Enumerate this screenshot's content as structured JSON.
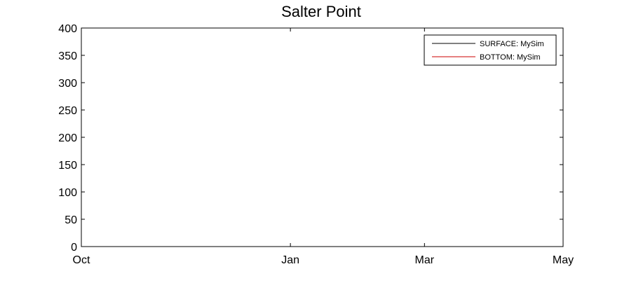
{
  "chart_data": {
    "type": "line",
    "title": "Salter Point",
    "xlabel": "",
    "ylabel": "",
    "x_tick_labels": [
      "Oct",
      "Jan",
      "Mar",
      "May"
    ],
    "x_tick_dates": [
      "2013-10-01",
      "2014-01-01",
      "2014-03-01",
      "2014-05-01"
    ],
    "ylim": [
      0,
      400
    ],
    "y_ticks": [
      0,
      50,
      100,
      150,
      200,
      250,
      300,
      350,
      400
    ],
    "grid": false,
    "legend_position": "top-right",
    "series": [
      {
        "name": "SURFACE: MySim",
        "color": "#000000",
        "x": [],
        "y": []
      },
      {
        "name": "BOTTOM: MySim",
        "color": "#cc0000",
        "x": [],
        "y": []
      }
    ]
  }
}
